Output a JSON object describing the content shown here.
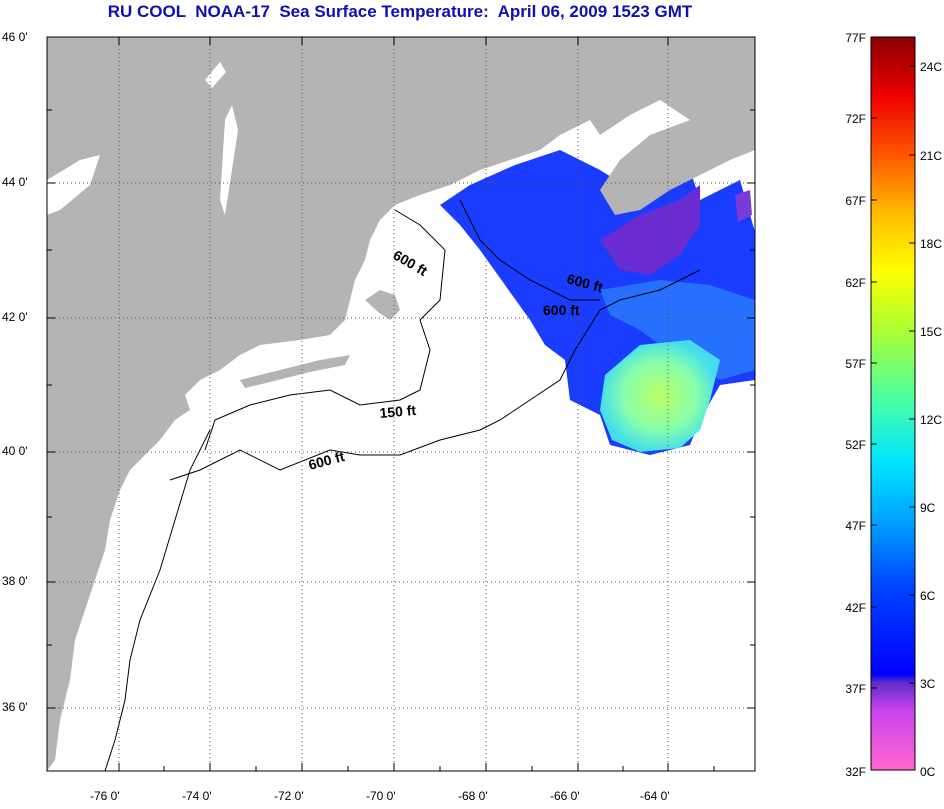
{
  "title": "RU COOL  NOAA-17  Sea Surface Temperature:  April 06, 2009 1523 GMT",
  "axes": {
    "lat_ticks": [
      "46 0'",
      "44 0'",
      "42 0'",
      "40 0'",
      "38 0'",
      "36 0'"
    ],
    "lon_ticks": [
      "-76 0'",
      "-74 0'",
      "-72 0'",
      "-70 0'",
      "-68 0'",
      "-66 0'",
      "-64 0'"
    ]
  },
  "contour_labels": [
    "600 ft",
    "600 ft",
    "600 ft",
    "150 ft",
    "600 ft"
  ],
  "colorbar": {
    "f_labels": [
      "77F",
      "72F",
      "67F",
      "62F",
      "57F",
      "52F",
      "47F",
      "42F",
      "37F",
      "32F"
    ],
    "c_labels": [
      "24C",
      "21C",
      "18C",
      "15C",
      "12C",
      "9C",
      "6C",
      "3C",
      "0C"
    ]
  },
  "colors": {
    "land": "#b4b4b4",
    "ocean": "#ffffff",
    "title": "#1010b0",
    "grid": "#555555"
  }
}
